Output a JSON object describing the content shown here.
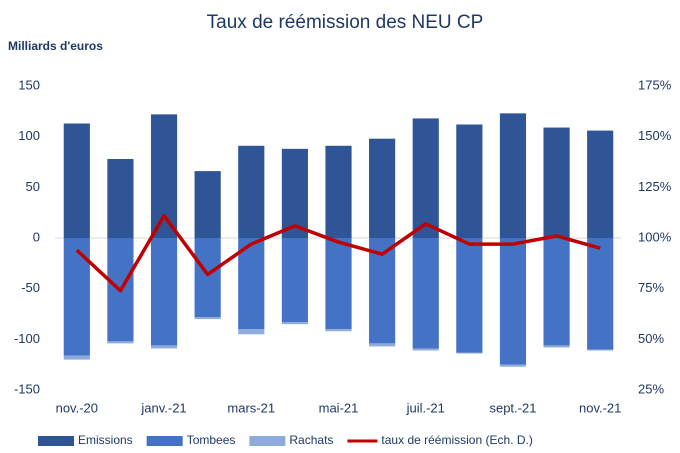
{
  "chart_data": {
    "type": "bar",
    "title": "Taux de réémission des NEU CP",
    "y_axis_label": "Milliards d'euros",
    "categories": [
      "nov.-20",
      null,
      "janv.-21",
      null,
      "mars-21",
      null,
      "mai-21",
      null,
      "juil.-21",
      null,
      "sept.-21",
      null,
      "nov.-21"
    ],
    "series": [
      {
        "name": "Emissions",
        "color": "#2f5597",
        "values": [
          113,
          78,
          122,
          66,
          91,
          88,
          91,
          98,
          118,
          112,
          123,
          109,
          106
        ]
      },
      {
        "name": "Tombees",
        "color": "#4472c4",
        "values": [
          -116,
          -102,
          -106,
          -78,
          -90,
          -83,
          -90,
          -104,
          -109,
          -113,
          -125,
          -106,
          -110
        ]
      },
      {
        "name": "Rachats",
        "color": "#8faadc",
        "values": [
          -4,
          -2,
          -3,
          -2,
          -5,
          -2,
          -2,
          -3,
          -2,
          -1,
          -2,
          -2,
          -1
        ]
      },
      {
        "name": "taux de réémission (Ech. D.)",
        "color": "#c00000",
        "type": "line",
        "axis": "y2",
        "values": [
          94,
          74,
          111,
          82,
          97,
          106,
          98,
          92,
          107,
          97,
          97,
          101,
          95
        ]
      }
    ],
    "ylim": [
      -150,
      150
    ],
    "yticks": [
      -150,
      -100,
      -50,
      0,
      50,
      100,
      150
    ],
    "y2lim": [
      25,
      175
    ],
    "y2ticks": [
      {
        "value": 25,
        "label": "25%"
      },
      {
        "value": 50,
        "label": "50%"
      },
      {
        "value": 75,
        "label": "75%"
      },
      {
        "value": 100,
        "label": "100%"
      },
      {
        "value": 125,
        "label": "125%"
      },
      {
        "value": 150,
        "label": "150%"
      },
      {
        "value": 175,
        "label": "175%"
      }
    ],
    "legend": "bottom"
  }
}
